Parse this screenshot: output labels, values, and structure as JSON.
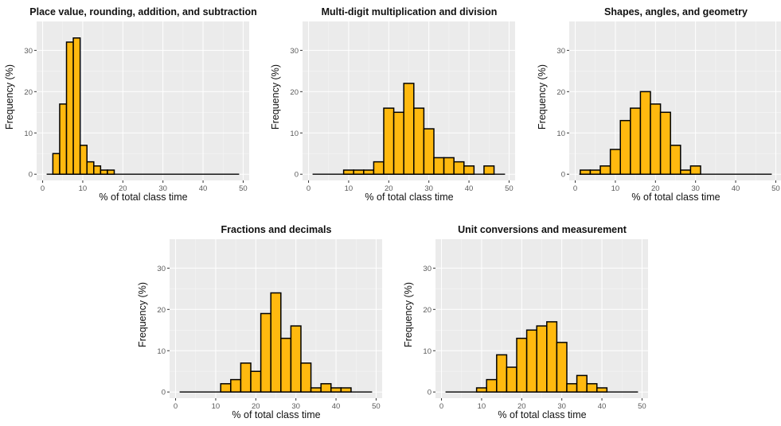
{
  "colors": {
    "bar_fill": "#FFB90F",
    "bar_edge": "#000000",
    "panel_background": "#ebebeb",
    "grid": "#ffffff"
  },
  "chart_data": [
    {
      "type": "bar",
      "title": "Place value, rounding, addition, and subtraction",
      "xlabel": "% of total class time",
      "ylabel": "Frequency (%)",
      "bin_width": 1.7,
      "bin_centers": [
        3.4,
        5.1,
        6.8,
        8.5,
        10.2,
        11.9,
        13.6,
        15.3,
        17.0
      ],
      "values": [
        5,
        17,
        32,
        33,
        7,
        3,
        2,
        1,
        1
      ],
      "baseline_range": [
        1,
        49
      ],
      "xlim": [
        -1.5,
        51.5
      ],
      "ylim": [
        -1.5,
        37
      ],
      "xticks": [
        0,
        10,
        20,
        30,
        40,
        50
      ],
      "yticks": [
        0,
        10,
        20,
        30
      ],
      "grid": true
    },
    {
      "type": "bar",
      "title": "Multi-digit multiplication and division",
      "xlabel": "% of total class time",
      "ylabel": "Frequency (%)",
      "bin_width": 2.5,
      "bin_centers": [
        10,
        12.5,
        15,
        17.5,
        20,
        22.5,
        25,
        27.5,
        30,
        32.5,
        35,
        37.5,
        40,
        42.5,
        45
      ],
      "values": [
        1,
        1,
        1,
        3,
        16,
        15,
        22,
        16,
        11,
        4,
        4,
        3,
        2,
        0,
        2
      ],
      "baseline_range": [
        1,
        49
      ],
      "xlim": [
        -1.5,
        51.5
      ],
      "ylim": [
        -1.5,
        37
      ],
      "xticks": [
        0,
        10,
        20,
        30,
        40,
        50
      ],
      "yticks": [
        0,
        10,
        20,
        30
      ],
      "grid": true
    },
    {
      "type": "bar",
      "title": "Shapes, angles, and geometry",
      "xlabel": "% of total class time",
      "ylabel": "Frequency (%)",
      "bin_width": 2.5,
      "bin_centers": [
        2.5,
        5,
        7.5,
        10,
        12.5,
        15,
        17.5,
        20,
        22.5,
        25,
        27.5,
        30
      ],
      "values": [
        1,
        1,
        2,
        6,
        13,
        16,
        20,
        17,
        15,
        7,
        1,
        2
      ],
      "baseline_range": [
        1,
        49
      ],
      "xlim": [
        -1.5,
        51.5
      ],
      "ylim": [
        -1.5,
        37
      ],
      "xticks": [
        0,
        10,
        20,
        30,
        40,
        50
      ],
      "yticks": [
        0,
        10,
        20,
        30
      ],
      "grid": true
    },
    {
      "type": "bar",
      "title": "Fractions and decimals",
      "xlabel": "% of total class time",
      "ylabel": "Frequency (%)",
      "bin_width": 2.5,
      "bin_centers": [
        12.5,
        15,
        17.5,
        20,
        22.5,
        25,
        27.5,
        30,
        32.5,
        35,
        37.5,
        40,
        42.5
      ],
      "values": [
        2,
        3,
        7,
        5,
        19,
        24,
        13,
        16,
        7,
        1,
        2,
        1,
        1
      ],
      "baseline_range": [
        1,
        49
      ],
      "xlim": [
        -1.5,
        51.5
      ],
      "ylim": [
        -1.5,
        37
      ],
      "xticks": [
        0,
        10,
        20,
        30,
        40,
        50
      ],
      "yticks": [
        0,
        10,
        20,
        30
      ],
      "grid": true
    },
    {
      "type": "bar",
      "title": "Unit conversions and measurement",
      "xlabel": "% of total class time",
      "ylabel": "Frequency (%)",
      "bin_width": 2.5,
      "bin_centers": [
        10,
        12.5,
        15,
        17.5,
        20,
        22.5,
        25,
        27.5,
        30,
        32.5,
        35,
        37.5,
        40
      ],
      "values": [
        1,
        3,
        9,
        6,
        13,
        15,
        16,
        17,
        12,
        2,
        4,
        2,
        1
      ],
      "baseline_range": [
        1,
        49
      ],
      "xlim": [
        -1.5,
        51.5
      ],
      "ylim": [
        -1.5,
        37
      ],
      "xticks": [
        0,
        10,
        20,
        30,
        40,
        50
      ],
      "yticks": [
        0,
        10,
        20,
        30
      ],
      "grid": true
    }
  ]
}
